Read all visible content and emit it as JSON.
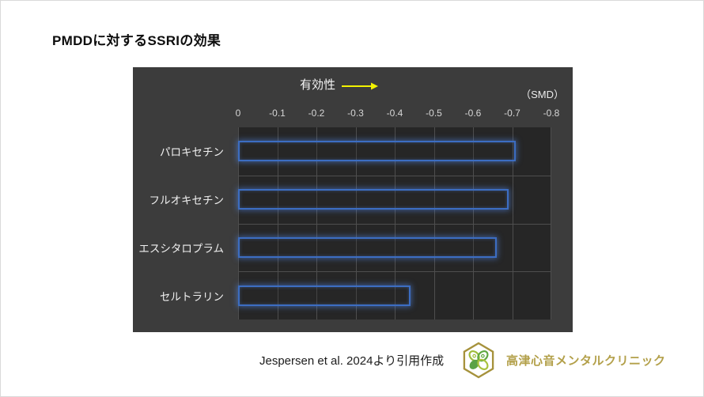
{
  "page": {
    "title": "PMDDに対するSSRIの効果"
  },
  "chart_data": {
    "type": "bar",
    "orientation": "horizontal",
    "title": "PMDDに対するSSRIの効果",
    "arrow_label": "有効性",
    "unit_label": "（SMD）",
    "categories": [
      "パロキセチン",
      "フルオキセチン",
      "エスシタロプラム",
      "セルトラリン"
    ],
    "values": [
      -0.71,
      -0.69,
      -0.66,
      -0.44
    ],
    "x_tick_labels": [
      "0",
      "-0.1",
      "-0.2",
      "-0.3",
      "-0.4",
      "-0.5",
      "-0.6",
      "-0.7",
      "-0.8"
    ],
    "xlim": [
      0,
      -0.8
    ],
    "axis_reversed": true,
    "grid": true,
    "legend": "none",
    "colors": {
      "panel_bg": "#3c3c3c",
      "plot_bg": "#262626",
      "gridline": "#4e4e4e",
      "bar_border": "#3c6dc2",
      "arrow": "#f2f200",
      "tick_text": "#d6d6d6",
      "category_text": "#f0f0f0"
    }
  },
  "footer": {
    "citation": "Jespersen et al. 2024より引用作成",
    "clinic_name": "高津心音メンタルクリニック",
    "clinic_color": "#b3a04a"
  }
}
